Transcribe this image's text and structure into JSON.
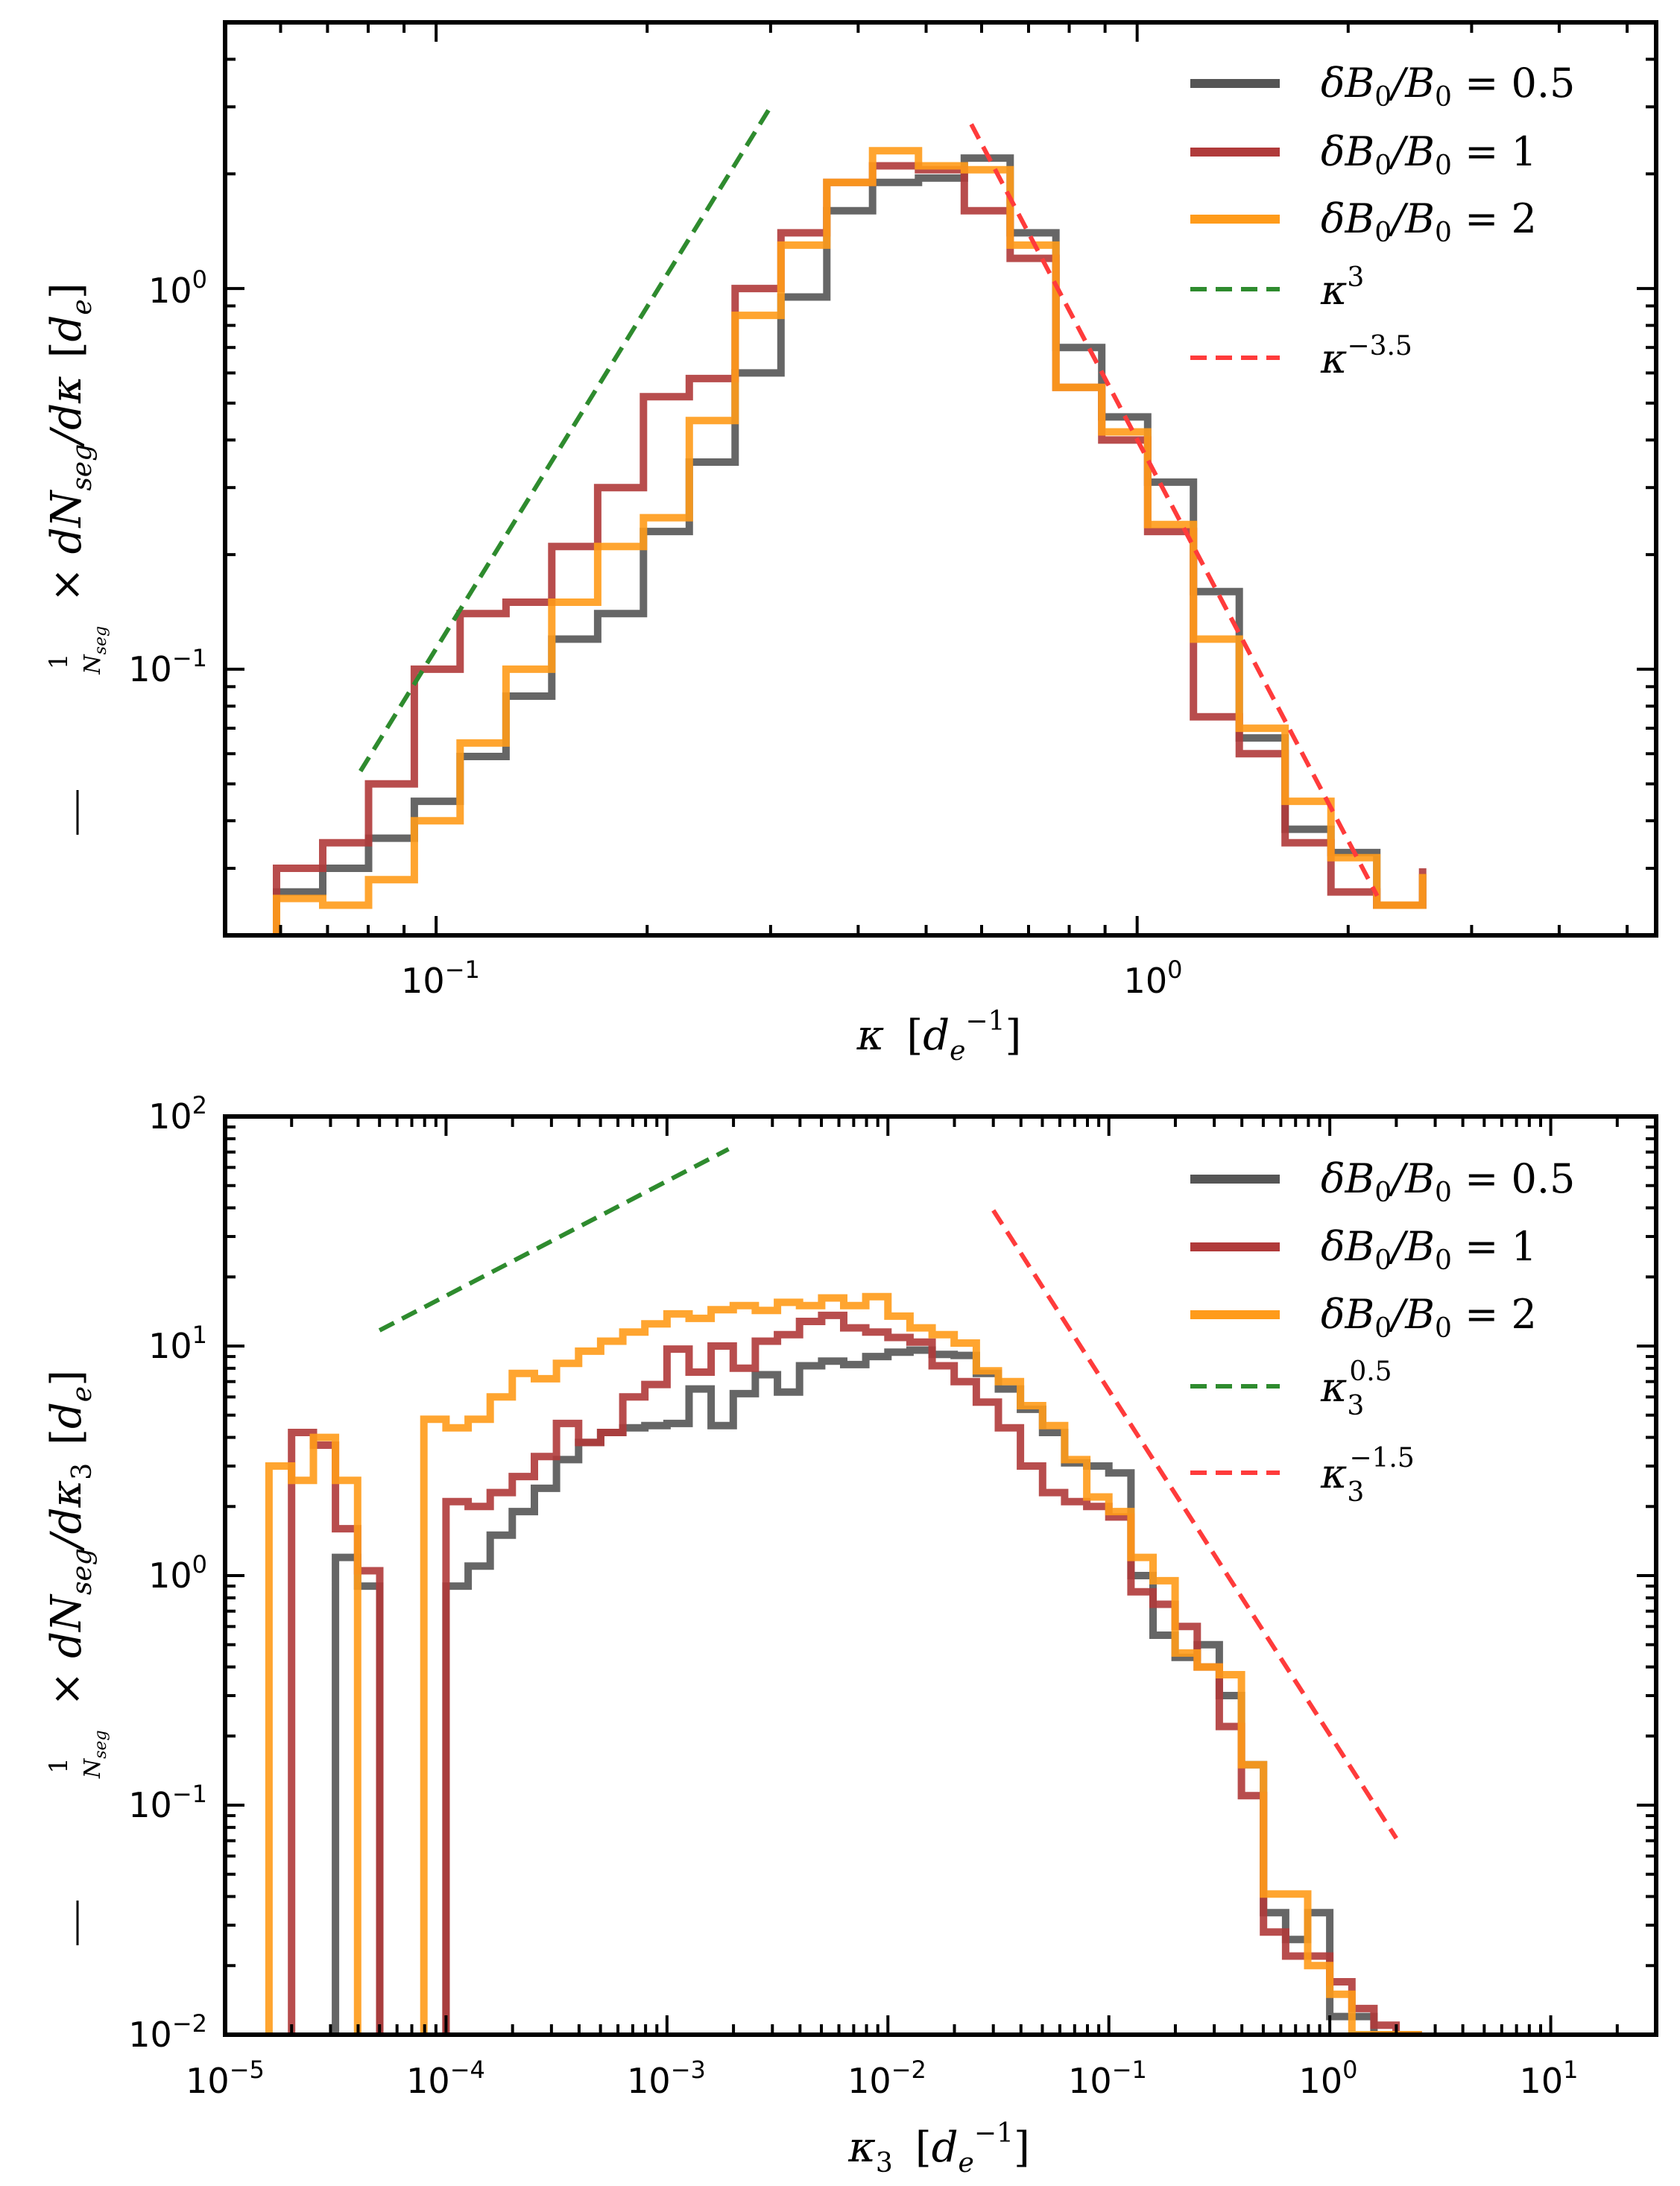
{
  "chart_data": [
    {
      "type": "line",
      "xscale": "log",
      "yscale": "log",
      "xlim": [
        0.05,
        5.5
      ],
      "ylim": [
        0.02,
        5.0
      ],
      "xlabel": "κ  [d_e^{-1}]",
      "ylabel": "1/N_seg × dN_seg/dκ  [d_e]",
      "xticks": [
        0.1,
        1.0
      ],
      "xtick_labels": [
        "10^-1",
        "10^0"
      ],
      "yticks": [
        0.1,
        1.0
      ],
      "ytick_labels": [
        "10^-1",
        "10^0"
      ],
      "grid": false,
      "legend_position": "top-right",
      "edges": [
        0.051,
        0.0592,
        0.0689,
        0.0801,
        0.0931,
        0.1082,
        0.1258,
        0.1462,
        0.17,
        0.1976,
        0.2297,
        0.267,
        0.3104,
        0.3608,
        0.4194,
        0.4876,
        0.5668,
        0.6589,
        0.7659,
        0.8904,
        1.0351,
        1.2032,
        1.3987,
        1.6259,
        1.8901,
        2.1972,
        2.5542
      ],
      "series": [
        {
          "name": "δB₀/B₀ = 0.5",
          "color": "#555555",
          "values": [
            0,
            0.026,
            0.03,
            0.036,
            0.045,
            0.059,
            0.085,
            0.12,
            0.14,
            0.23,
            0.35,
            0.6,
            0.95,
            1.6,
            1.9,
            1.95,
            2.2,
            1.4,
            0.7,
            0.46,
            0.31,
            0.16,
            0.066,
            0.038,
            0.033,
            0.024,
            0.029
          ]
        },
        {
          "name": "δB₀/B₀ = 1",
          "color": "#B03A3A",
          "values": [
            0,
            0.03,
            0.035,
            0.05,
            0.1,
            0.14,
            0.15,
            0.21,
            0.3,
            0.52,
            0.58,
            1.0,
            1.4,
            1.9,
            2.1,
            2.05,
            1.6,
            1.2,
            0.55,
            0.4,
            0.23,
            0.075,
            0.06,
            0.035,
            0.026,
            0.024,
            0.03
          ]
        },
        {
          "name": "δB₀/B₀ = 2",
          "color": "#FF9B1A",
          "values": [
            0,
            0.025,
            0.024,
            0.028,
            0.04,
            0.064,
            0.1,
            0.15,
            0.21,
            0.25,
            0.45,
            0.85,
            1.3,
            1.9,
            2.3,
            2.1,
            2.05,
            1.3,
            0.55,
            0.42,
            0.24,
            0.12,
            0.07,
            0.045,
            0.032,
            0.024,
            0.029
          ]
        }
      ],
      "reference_lines": [
        {
          "name": "κ^3",
          "color": "#2E8B2E",
          "exponent": 3,
          "x": [
            0.078,
            0.3
          ],
          "y": [
            0.054,
            3.0
          ]
        },
        {
          "name": "κ^-3.5",
          "color": "#FF3B3B",
          "exponent": -3.5,
          "x": [
            0.58,
            2.2
          ],
          "y": [
            2.7,
            0.0254
          ]
        }
      ]
    },
    {
      "type": "line",
      "xscale": "log",
      "yscale": "log",
      "xlim": [
        1e-05,
        30
      ],
      "ylim": [
        0.01,
        100
      ],
      "xlabel": "κ₃  [d_e^{-1}]",
      "ylabel": "1/N_seg × dN_seg/dκ₃  [d_e]",
      "xticks": [
        1e-05,
        0.0001,
        0.001,
        0.01,
        0.1,
        1,
        10
      ],
      "xtick_labels": [
        "10^-5",
        "10^-4",
        "10^-3",
        "10^-2",
        "10^-1",
        "10^0",
        "10^1"
      ],
      "yticks": [
        0.01,
        0.1,
        1,
        10,
        100
      ],
      "ytick_labels": [
        "10^-2",
        "10^-1",
        "10^0",
        "10^1",
        "10^2"
      ],
      "grid": false,
      "legend_position": "top-right",
      "edges": [
        1.58e-05,
        2e-05,
        2.51e-05,
        3.16e-05,
        3.98e-05,
        5.01e-05,
        6.31e-05,
        7.94e-05,
        0.0001,
        0.0001259,
        0.0001585,
        0.0001995,
        0.0002512,
        0.0003162,
        0.0003981,
        0.0005012,
        0.000631,
        0.0007943,
        0.001,
        0.0012589,
        0.0015849,
        0.0019953,
        0.0025119,
        0.0031623,
        0.0039811,
        0.0050119,
        0.0063096,
        0.0079433,
        0.01,
        0.0125893,
        0.0158489,
        0.0199526,
        0.0251189,
        0.0316228,
        0.0398107,
        0.0501187,
        0.0630957,
        0.0794328,
        0.1,
        0.1258925,
        0.1584893,
        0.1995262,
        0.2511886,
        0.3162278,
        0.3981072,
        0.5011872,
        0.6309573,
        0.7943282,
        1.0,
        1.2589254,
        1.5848932,
        1.9952623,
        2.5118864
      ],
      "series": [
        {
          "name": "δB₀/B₀ = 0.5",
          "color": "#555555",
          "values": [
            0,
            0,
            0,
            1.2,
            0.9,
            0,
            0,
            0,
            0.9,
            1.1,
            1.5,
            1.9,
            2.4,
            3.2,
            3.8,
            4.2,
            4.4,
            4.5,
            4.6,
            6.5,
            4.5,
            6.2,
            7.5,
            6.3,
            8.2,
            8.6,
            8.3,
            9.0,
            9.4,
            9.6,
            9.2,
            9.1,
            7.6,
            6.5,
            5.3,
            4.2,
            3.1,
            3.0,
            2.8,
            1.0,
            0.55,
            0.44,
            0.5,
            0.3,
            0.15,
            0.034,
            0.026,
            0.034,
            0.012,
            0.012,
            0.01,
            0.01
          ]
        },
        {
          "name": "δB₀/B₀ = 1",
          "color": "#B03A3A",
          "values": [
            0,
            4.2,
            3.7,
            1.6,
            1.05,
            0,
            0,
            0,
            2.1,
            2.0,
            2.3,
            2.7,
            3.3,
            4.6,
            3.8,
            4.2,
            6.0,
            6.8,
            9.7,
            7.7,
            10.0,
            8.0,
            10.5,
            11.2,
            12.8,
            13.6,
            12.0,
            11.5,
            10.9,
            10.4,
            8.2,
            7.0,
            5.7,
            4.4,
            3.0,
            2.3,
            2.1,
            2.0,
            1.8,
            0.85,
            0.75,
            0.6,
            0.4,
            0.22,
            0.11,
            0.028,
            0.022,
            0.022,
            0.017,
            0.013,
            0.011,
            0.01
          ]
        },
        {
          "name": "δB₀/B₀ = 2",
          "color": "#FF9B1A",
          "values": [
            3.0,
            2.6,
            4.0,
            2.6,
            0,
            0,
            0,
            4.8,
            4.4,
            4.8,
            6.0,
            7.6,
            7.2,
            8.4,
            9.5,
            10.5,
            11.5,
            12.5,
            13.8,
            13.2,
            14.4,
            15.0,
            14.3,
            15.5,
            15.0,
            16.2,
            15.0,
            16.4,
            13.5,
            12.0,
            11.2,
            10.3,
            7.8,
            7.0,
            5.5,
            4.5,
            3.2,
            2.2,
            1.9,
            1.2,
            0.95,
            0.46,
            0.4,
            0.37,
            0.15,
            0.041,
            0.041,
            0.02,
            0.015,
            0.01,
            0.01,
            0.01
          ]
        }
      ],
      "reference_lines": [
        {
          "name": "κ₃^0.5",
          "color": "#2E8B2E",
          "exponent": 0.5,
          "x": [
            5e-05,
            0.0019
          ],
          "y": [
            11.7,
            72.1
          ]
        },
        {
          "name": "κ₃^-1.5",
          "color": "#FF3B3B",
          "exponent": -1.5,
          "x": [
            0.03,
            2.0
          ],
          "y": [
            39.0,
            0.0717
          ]
        }
      ]
    }
  ]
}
